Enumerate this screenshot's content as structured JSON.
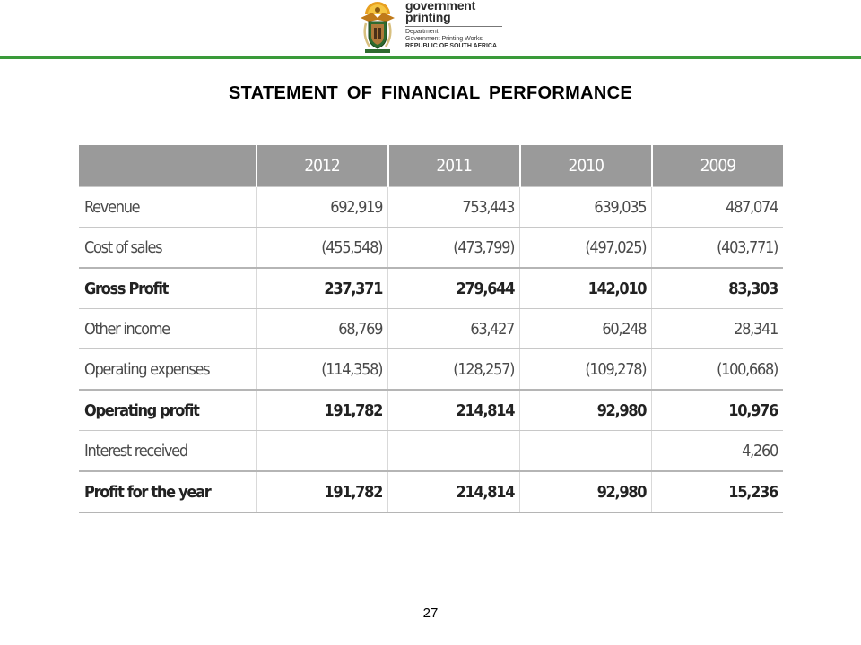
{
  "header": {
    "brand_line1": "government",
    "brand_line2": "printing",
    "dept_line1": "Department:",
    "dept_line2": "Government Printing Works",
    "dept_line3": "REPUBLIC OF SOUTH AFRICA",
    "accent_color": "#3a9a3a",
    "logo_icon": "coat-of-arms-icon"
  },
  "title": "STATEMENT  OF  FINANCIAL  PERFORMANCE",
  "table": {
    "columns": [
      "2012",
      "2011",
      "2010",
      "2009"
    ],
    "header_color": "#9a9a9a",
    "rows": [
      {
        "label": "Revenue",
        "bold": false,
        "values": [
          "692,919",
          "753,443",
          "639,035",
          "487,074"
        ]
      },
      {
        "label": "Cost of sales",
        "bold": false,
        "values": [
          "(455,548)",
          "(473,799)",
          "(497,025)",
          "(403,771)"
        ]
      },
      {
        "label": "Gross Profit",
        "bold": true,
        "values": [
          "237,371",
          "279,644",
          "142,010",
          "83,303"
        ]
      },
      {
        "label": "Other income",
        "bold": false,
        "values": [
          "68,769",
          "63,427",
          "60,248",
          "28,341"
        ]
      },
      {
        "label": "Operating expenses",
        "bold": false,
        "values": [
          "(114,358)",
          "(128,257)",
          "(109,278)",
          "(100,668)"
        ]
      },
      {
        "label": "Operating profit",
        "bold": true,
        "values": [
          "191,782",
          "214,814",
          "92,980",
          "10,976"
        ]
      },
      {
        "label": "Interest received",
        "bold": false,
        "values": [
          "",
          "",
          "",
          "4,260"
        ]
      },
      {
        "label": "Profit for the year",
        "bold": true,
        "values": [
          "191,782",
          "214,814",
          "92,980",
          "15,236"
        ]
      }
    ]
  },
  "page_number": "27"
}
